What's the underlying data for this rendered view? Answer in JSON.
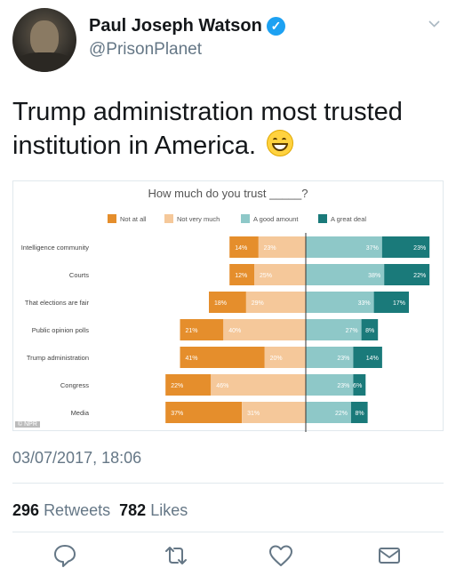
{
  "tweet": {
    "author_name": "Paul Joseph Watson",
    "handle": "@PrisonPlanet",
    "text": "Trump administration most trusted institution in America.",
    "emoji": "grinning-face-emoji",
    "timestamp": "03/07/2017, 18:06",
    "retweets_count": "296",
    "retweets_label": "Retweets",
    "likes_count": "782",
    "likes_label": "Likes"
  },
  "icons": {
    "verified": "verified-badge-icon",
    "menu": "chevron-down-icon",
    "reply": "reply-icon",
    "retweet": "retweet-icon",
    "like": "heart-icon",
    "message": "envelope-icon"
  },
  "watermark": "© NPR",
  "colors": {
    "not_at_all": "#e58e2c",
    "not_very_much": "#f5c89a",
    "a_good_amount": "#8ec8c8",
    "a_great_deal": "#1a7a7a",
    "link_blue": "#1da1f2"
  },
  "chart_data": {
    "type": "bar",
    "title": "How much do you trust _____?",
    "legend": [
      "Not at all",
      "Not very much",
      "A good amount",
      "A great deal"
    ],
    "legend_placement": "top",
    "categories": [
      "Intelligence community",
      "Courts",
      "That elections are fair",
      "Public opinion polls",
      "Trump administration",
      "Congress",
      "Media"
    ],
    "series": [
      {
        "name": "Not at all",
        "values": [
          14,
          12,
          18,
          21,
          41,
          22,
          37
        ]
      },
      {
        "name": "Not very much",
        "values": [
          23,
          25,
          29,
          40,
          20,
          46,
          31
        ]
      },
      {
        "name": "A good amount",
        "values": [
          37,
          38,
          33,
          27,
          23,
          23,
          22
        ]
      },
      {
        "name": "A great deal",
        "values": [
          23,
          22,
          17,
          8,
          14,
          6,
          8
        ]
      }
    ],
    "diverging": true,
    "grid": false
  }
}
